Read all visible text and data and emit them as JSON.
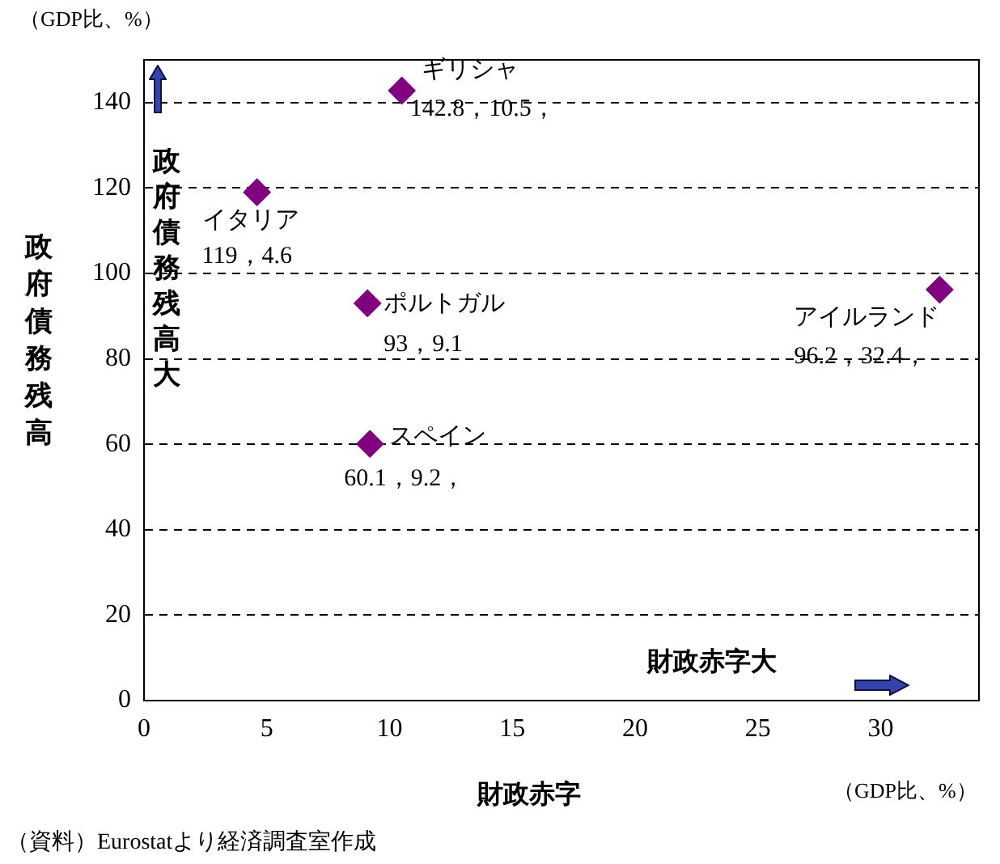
{
  "chart_data": {
    "type": "scatter",
    "ylabel": "政府債務残高",
    "xlabel": "財政赤字",
    "x": [
      10.5,
      4.6,
      9.1,
      32.4,
      9.2
    ],
    "values": [
      142.8,
      119,
      93,
      96.2,
      60.1
    ],
    "color": "#800080",
    "marker": "diamond",
    "xlim": [
      0,
      34
    ],
    "xticks": [
      0,
      5,
      10,
      15,
      20,
      25,
      30
    ],
    "ylim": [
      0,
      150
    ],
    "yticks": [
      0,
      20,
      40,
      60,
      80,
      100,
      120,
      140
    ],
    "grid": "y",
    "legend": false,
    "annotations": [
      {
        "text": "ギリシャ",
        "x": 10.5,
        "y": 142.8
      },
      {
        "text": "142.8，10.5，",
        "x": 10.5,
        "y": 142.8
      },
      {
        "text": "イタリア",
        "x": 4.6,
        "y": 119
      },
      {
        "text": "119，4.6",
        "x": 4.6,
        "y": 119
      },
      {
        "text": "ポルトガル",
        "x": 9.1,
        "y": 93
      },
      {
        "text": "93，9.1",
        "x": 9.1,
        "y": 93
      },
      {
        "text": "アイルランド",
        "x": 32.4,
        "y": 96.2
      },
      {
        "text": "96.2，32.4，",
        "x": 32.4,
        "y": 96.2
      },
      {
        "text": "スペイン",
        "x": 9.2,
        "y": 60.1
      },
      {
        "text": "60.1，9.2，",
        "x": 9.2,
        "y": 60.1
      },
      "（GDP比、%）",
      "（GDP比、%）",
      "政府債務残高大",
      "財政赤字大",
      "（資料）Eurostatより経済調査室作成"
    ]
  }
}
